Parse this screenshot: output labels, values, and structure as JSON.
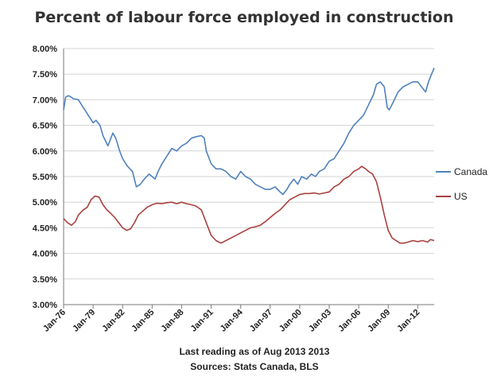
{
  "chart_data": {
    "type": "line",
    "title": "Percent of labour force employed in construction",
    "notes": [
      "Last reading as of Aug 2013 2013",
      "Sources: Stats Canada, BLS"
    ],
    "x_range": [
      1976.0,
      2013.67
    ],
    "ylim": [
      3.0,
      8.0
    ],
    "y_ticks": [
      "3.00%",
      "3.50%",
      "4.00%",
      "4.50%",
      "5.00%",
      "5.50%",
      "6.00%",
      "6.50%",
      "7.00%",
      "7.50%",
      "8.00%"
    ],
    "x_ticks": [
      {
        "label": "Jan-76",
        "year": 1976
      },
      {
        "label": "Jan-79",
        "year": 1979
      },
      {
        "label": "Jan-82",
        "year": 1982
      },
      {
        "label": "Jan-85",
        "year": 1985
      },
      {
        "label": "Jan-88",
        "year": 1988
      },
      {
        "label": "Jan-91",
        "year": 1991
      },
      {
        "label": "Jan-94",
        "year": 1994
      },
      {
        "label": "Jan-97",
        "year": 1997
      },
      {
        "label": "Jan-00",
        "year": 2000
      },
      {
        "label": "Jan-03",
        "year": 2003
      },
      {
        "label": "Jan-06",
        "year": 2006
      },
      {
        "label": "Jan-09",
        "year": 2009
      },
      {
        "label": "Jan-12",
        "year": 2012
      }
    ],
    "grid": true,
    "legend_position": "right",
    "series": [
      {
        "name": "Canada",
        "color": "#4f81bd",
        "points": [
          [
            1976.0,
            6.8
          ],
          [
            1976.2,
            7.05
          ],
          [
            1976.5,
            7.08
          ],
          [
            1977.0,
            7.02
          ],
          [
            1977.5,
            7.0
          ],
          [
            1978.0,
            6.85
          ],
          [
            1978.5,
            6.7
          ],
          [
            1979.0,
            6.55
          ],
          [
            1979.3,
            6.6
          ],
          [
            1979.7,
            6.5
          ],
          [
            1980.0,
            6.3
          ],
          [
            1980.5,
            6.1
          ],
          [
            1981.0,
            6.35
          ],
          [
            1981.3,
            6.25
          ],
          [
            1981.7,
            6.0
          ],
          [
            1982.0,
            5.85
          ],
          [
            1982.5,
            5.7
          ],
          [
            1983.0,
            5.6
          ],
          [
            1983.4,
            5.3
          ],
          [
            1983.8,
            5.35
          ],
          [
            1984.2,
            5.45
          ],
          [
            1984.7,
            5.55
          ],
          [
            1985.0,
            5.5
          ],
          [
            1985.3,
            5.45
          ],
          [
            1985.6,
            5.6
          ],
          [
            1986.0,
            5.75
          ],
          [
            1986.5,
            5.9
          ],
          [
            1987.0,
            6.05
          ],
          [
            1987.5,
            6.0
          ],
          [
            1988.0,
            6.1
          ],
          [
            1988.5,
            6.15
          ],
          [
            1989.0,
            6.25
          ],
          [
            1989.5,
            6.28
          ],
          [
            1990.0,
            6.3
          ],
          [
            1990.3,
            6.25
          ],
          [
            1990.5,
            6.0
          ],
          [
            1991.0,
            5.75
          ],
          [
            1991.5,
            5.65
          ],
          [
            1992.0,
            5.65
          ],
          [
            1992.5,
            5.6
          ],
          [
            1993.0,
            5.5
          ],
          [
            1993.5,
            5.45
          ],
          [
            1994.0,
            5.6
          ],
          [
            1994.5,
            5.5
          ],
          [
            1995.0,
            5.45
          ],
          [
            1995.5,
            5.35
          ],
          [
            1996.0,
            5.3
          ],
          [
            1996.5,
            5.25
          ],
          [
            1997.0,
            5.25
          ],
          [
            1997.5,
            5.3
          ],
          [
            1998.0,
            5.2
          ],
          [
            1998.3,
            5.15
          ],
          [
            1998.7,
            5.25
          ],
          [
            1999.0,
            5.35
          ],
          [
            1999.4,
            5.45
          ],
          [
            1999.8,
            5.35
          ],
          [
            2000.2,
            5.5
          ],
          [
            2000.7,
            5.45
          ],
          [
            2001.2,
            5.55
          ],
          [
            2001.6,
            5.5
          ],
          [
            2002.0,
            5.6
          ],
          [
            2002.5,
            5.65
          ],
          [
            2003.0,
            5.8
          ],
          [
            2003.5,
            5.85
          ],
          [
            2004.0,
            6.0
          ],
          [
            2004.5,
            6.15
          ],
          [
            2005.0,
            6.35
          ],
          [
            2005.5,
            6.5
          ],
          [
            2006.0,
            6.6
          ],
          [
            2006.5,
            6.7
          ],
          [
            2007.0,
            6.9
          ],
          [
            2007.5,
            7.1
          ],
          [
            2007.8,
            7.3
          ],
          [
            2008.2,
            7.35
          ],
          [
            2008.6,
            7.25
          ],
          [
            2008.9,
            6.85
          ],
          [
            2009.1,
            6.8
          ],
          [
            2009.5,
            6.95
          ],
          [
            2010.0,
            7.15
          ],
          [
            2010.5,
            7.25
          ],
          [
            2011.0,
            7.3
          ],
          [
            2011.5,
            7.35
          ],
          [
            2012.0,
            7.35
          ],
          [
            2012.4,
            7.25
          ],
          [
            2012.8,
            7.15
          ],
          [
            2013.1,
            7.35
          ],
          [
            2013.4,
            7.5
          ],
          [
            2013.67,
            7.62
          ]
        ]
      },
      {
        "name": "US",
        "color": "#a9413e",
        "points": [
          [
            1976.0,
            4.68
          ],
          [
            1976.4,
            4.6
          ],
          [
            1976.8,
            4.55
          ],
          [
            1977.2,
            4.62
          ],
          [
            1977.5,
            4.75
          ],
          [
            1978.0,
            4.85
          ],
          [
            1978.4,
            4.9
          ],
          [
            1978.8,
            5.05
          ],
          [
            1979.2,
            5.12
          ],
          [
            1979.6,
            5.1
          ],
          [
            1980.0,
            4.95
          ],
          [
            1980.4,
            4.85
          ],
          [
            1980.8,
            4.78
          ],
          [
            1981.2,
            4.7
          ],
          [
            1981.6,
            4.6
          ],
          [
            1982.0,
            4.5
          ],
          [
            1982.4,
            4.45
          ],
          [
            1982.8,
            4.48
          ],
          [
            1983.2,
            4.6
          ],
          [
            1983.6,
            4.75
          ],
          [
            1984.0,
            4.82
          ],
          [
            1984.5,
            4.9
          ],
          [
            1985.0,
            4.95
          ],
          [
            1985.5,
            4.98
          ],
          [
            1986.0,
            4.97
          ],
          [
            1986.5,
            4.99
          ],
          [
            1987.0,
            5.0
          ],
          [
            1987.5,
            4.97
          ],
          [
            1988.0,
            5.0
          ],
          [
            1988.5,
            4.97
          ],
          [
            1989.0,
            4.95
          ],
          [
            1989.5,
            4.92
          ],
          [
            1990.0,
            4.85
          ],
          [
            1990.3,
            4.7
          ],
          [
            1990.6,
            4.55
          ],
          [
            1991.0,
            4.35
          ],
          [
            1991.5,
            4.25
          ],
          [
            1992.0,
            4.2
          ],
          [
            1992.5,
            4.25
          ],
          [
            1993.0,
            4.3
          ],
          [
            1993.5,
            4.35
          ],
          [
            1994.0,
            4.4
          ],
          [
            1994.5,
            4.45
          ],
          [
            1995.0,
            4.5
          ],
          [
            1995.5,
            4.52
          ],
          [
            1996.0,
            4.55
          ],
          [
            1996.5,
            4.62
          ],
          [
            1997.0,
            4.7
          ],
          [
            1997.5,
            4.78
          ],
          [
            1998.0,
            4.85
          ],
          [
            1998.5,
            4.95
          ],
          [
            1999.0,
            5.05
          ],
          [
            1999.5,
            5.1
          ],
          [
            2000.0,
            5.15
          ],
          [
            2000.5,
            5.17
          ],
          [
            2001.0,
            5.17
          ],
          [
            2001.5,
            5.18
          ],
          [
            2002.0,
            5.16
          ],
          [
            2002.5,
            5.18
          ],
          [
            2003.0,
            5.2
          ],
          [
            2003.5,
            5.3
          ],
          [
            2004.0,
            5.35
          ],
          [
            2004.5,
            5.45
          ],
          [
            2005.0,
            5.5
          ],
          [
            2005.5,
            5.6
          ],
          [
            2006.0,
            5.65
          ],
          [
            2006.3,
            5.7
          ],
          [
            2006.7,
            5.65
          ],
          [
            2007.0,
            5.6
          ],
          [
            2007.4,
            5.55
          ],
          [
            2007.8,
            5.4
          ],
          [
            2008.2,
            5.1
          ],
          [
            2008.6,
            4.75
          ],
          [
            2009.0,
            4.45
          ],
          [
            2009.4,
            4.3
          ],
          [
            2009.8,
            4.25
          ],
          [
            2010.2,
            4.2
          ],
          [
            2010.6,
            4.2
          ],
          [
            2011.0,
            4.22
          ],
          [
            2011.5,
            4.25
          ],
          [
            2012.0,
            4.23
          ],
          [
            2012.5,
            4.25
          ],
          [
            2013.0,
            4.22
          ],
          [
            2013.3,
            4.27
          ],
          [
            2013.67,
            4.25
          ]
        ]
      }
    ]
  }
}
